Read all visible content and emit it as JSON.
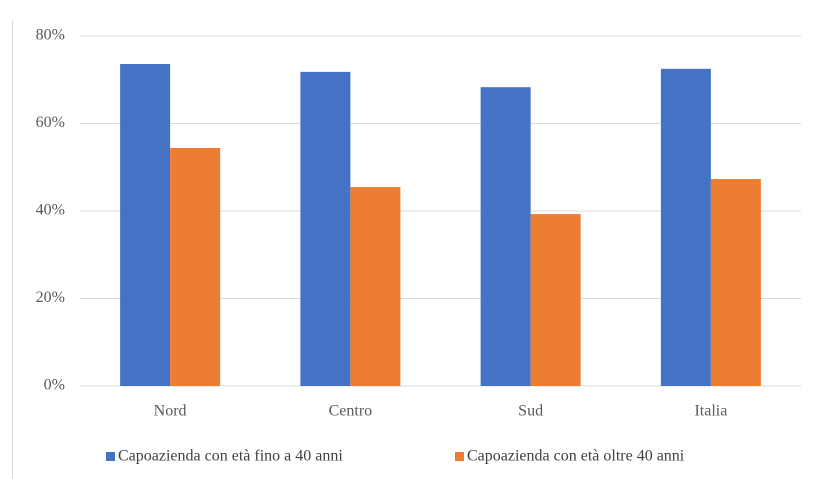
{
  "chart_data": {
    "type": "bar",
    "categories": [
      "Nord",
      "Centro",
      "Sud",
      "Italia"
    ],
    "series": [
      {
        "name": "Capoazienda con età fino a 40 anni",
        "color": "#4472c4",
        "values": [
          73.6,
          71.8,
          68.3,
          72.5
        ]
      },
      {
        "name": "Capoazienda con età oltre 40 anni",
        "color": "#ed7d31",
        "values": [
          54.4,
          45.5,
          39.3,
          47.3
        ]
      }
    ],
    "ylim": [
      0,
      80
    ],
    "yticks": [
      {
        "value": 0,
        "label": "0%"
      },
      {
        "value": 20,
        "label": "20%"
      },
      {
        "value": 40,
        "label": "40%"
      },
      {
        "value": 60,
        "label": "60%"
      },
      {
        "value": 80,
        "label": "80%"
      }
    ],
    "grid": true,
    "legend": "bottom"
  }
}
